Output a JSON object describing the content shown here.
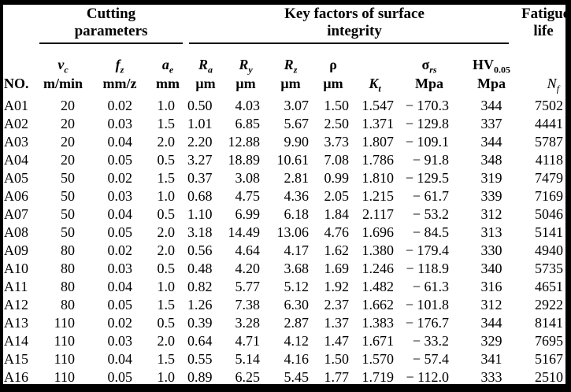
{
  "chart_data": {
    "type": "table",
    "column_groups": [
      {
        "label": "Cutting parameters"
      },
      {
        "label": "Key factors of surface integrity"
      },
      {
        "label": "Fatigue life"
      }
    ],
    "columns": [
      {
        "id": "no",
        "sym": "",
        "sub": "",
        "unit": "NO."
      },
      {
        "id": "vc",
        "sym": "v",
        "sub": "c",
        "unit": "m/min"
      },
      {
        "id": "fz",
        "sym": "f",
        "sub": "z",
        "unit": "mm/z"
      },
      {
        "id": "ae",
        "sym": "a",
        "sub": "e",
        "unit": "mm"
      },
      {
        "id": "Ra",
        "sym": "R",
        "sub": "a",
        "unit": "μm"
      },
      {
        "id": "Ry",
        "sym": "R",
        "sub": "y",
        "unit": "μm"
      },
      {
        "id": "Rz",
        "sym": "R",
        "sub": "z",
        "unit": "μm"
      },
      {
        "id": "rho",
        "sym": "ρ",
        "sub": "",
        "unit": "μm"
      },
      {
        "id": "Kt",
        "sym": "K",
        "sub": "t",
        "unit": ""
      },
      {
        "id": "sigma_rs",
        "sym": "σ",
        "sub": "rs",
        "unit": "Mpa"
      },
      {
        "id": "HV005",
        "sym": "HV",
        "sub": "0.05",
        "unit": "Mpa"
      },
      {
        "id": "Nf",
        "sym": "N",
        "sub": "f",
        "unit": ""
      }
    ],
    "rows": [
      [
        "A01",
        "20",
        "0.02",
        "1.0",
        "0.50",
        "4.03",
        "3.07",
        "1.50",
        "1.547",
        "− 170.3",
        "344",
        "7502"
      ],
      [
        "A02",
        "20",
        "0.03",
        "1.5",
        "1.01",
        "6.85",
        "5.67",
        "2.50",
        "1.371",
        "− 129.8",
        "337",
        "4441"
      ],
      [
        "A03",
        "20",
        "0.04",
        "2.0",
        "2.20",
        "12.88",
        "9.90",
        "3.73",
        "1.807",
        "− 109.1",
        "344",
        "5787"
      ],
      [
        "A04",
        "20",
        "0.05",
        "0.5",
        "3.27",
        "18.89",
        "10.61",
        "7.08",
        "1.786",
        "− 91.8",
        "348",
        "4118"
      ],
      [
        "A05",
        "50",
        "0.02",
        "1.5",
        "0.37",
        "3.08",
        "2.81",
        "0.99",
        "1.810",
        "− 129.5",
        "319",
        "7479"
      ],
      [
        "A06",
        "50",
        "0.03",
        "1.0",
        "0.68",
        "4.75",
        "4.36",
        "2.05",
        "1.215",
        "− 61.7",
        "339",
        "7169"
      ],
      [
        "A07",
        "50",
        "0.04",
        "0.5",
        "1.10",
        "6.99",
        "6.18",
        "1.84",
        "2.117",
        "− 53.2",
        "312",
        "5046"
      ],
      [
        "A08",
        "50",
        "0.05",
        "2.0",
        "3.18",
        "14.49",
        "13.06",
        "4.76",
        "1.696",
        "− 84.5",
        "313",
        "5141"
      ],
      [
        "A09",
        "80",
        "0.02",
        "2.0",
        "0.56",
        "4.64",
        "4.17",
        "1.62",
        "1.380",
        "− 179.4",
        "330",
        "4940"
      ],
      [
        "A10",
        "80",
        "0.03",
        "0.5",
        "0.48",
        "4.20",
        "3.68",
        "1.69",
        "1.246",
        "− 118.9",
        "340",
        "5735"
      ],
      [
        "A11",
        "80",
        "0.04",
        "1.0",
        "0.82",
        "5.77",
        "5.12",
        "1.92",
        "1.482",
        "− 61.3",
        "316",
        "4651"
      ],
      [
        "A12",
        "80",
        "0.05",
        "1.5",
        "1.26",
        "7.38",
        "6.30",
        "2.37",
        "1.662",
        "− 101.8",
        "312",
        "2922"
      ],
      [
        "A13",
        "110",
        "0.02",
        "0.5",
        "0.39",
        "3.28",
        "2.87",
        "1.37",
        "1.383",
        "− 176.7",
        "344",
        "8141"
      ],
      [
        "A14",
        "110",
        "0.03",
        "2.0",
        "0.64",
        "4.71",
        "4.12",
        "1.47",
        "1.671",
        "− 33.2",
        "329",
        "7695"
      ],
      [
        "A15",
        "110",
        "0.04",
        "1.5",
        "0.55",
        "5.14",
        "4.16",
        "1.50",
        "1.570",
        "− 57.4",
        "341",
        "5167"
      ],
      [
        "A16",
        "110",
        "0.05",
        "1.0",
        "0.89",
        "6.25",
        "5.45",
        "1.77",
        "1.719",
        "− 112.0",
        "333",
        "2510"
      ]
    ]
  }
}
